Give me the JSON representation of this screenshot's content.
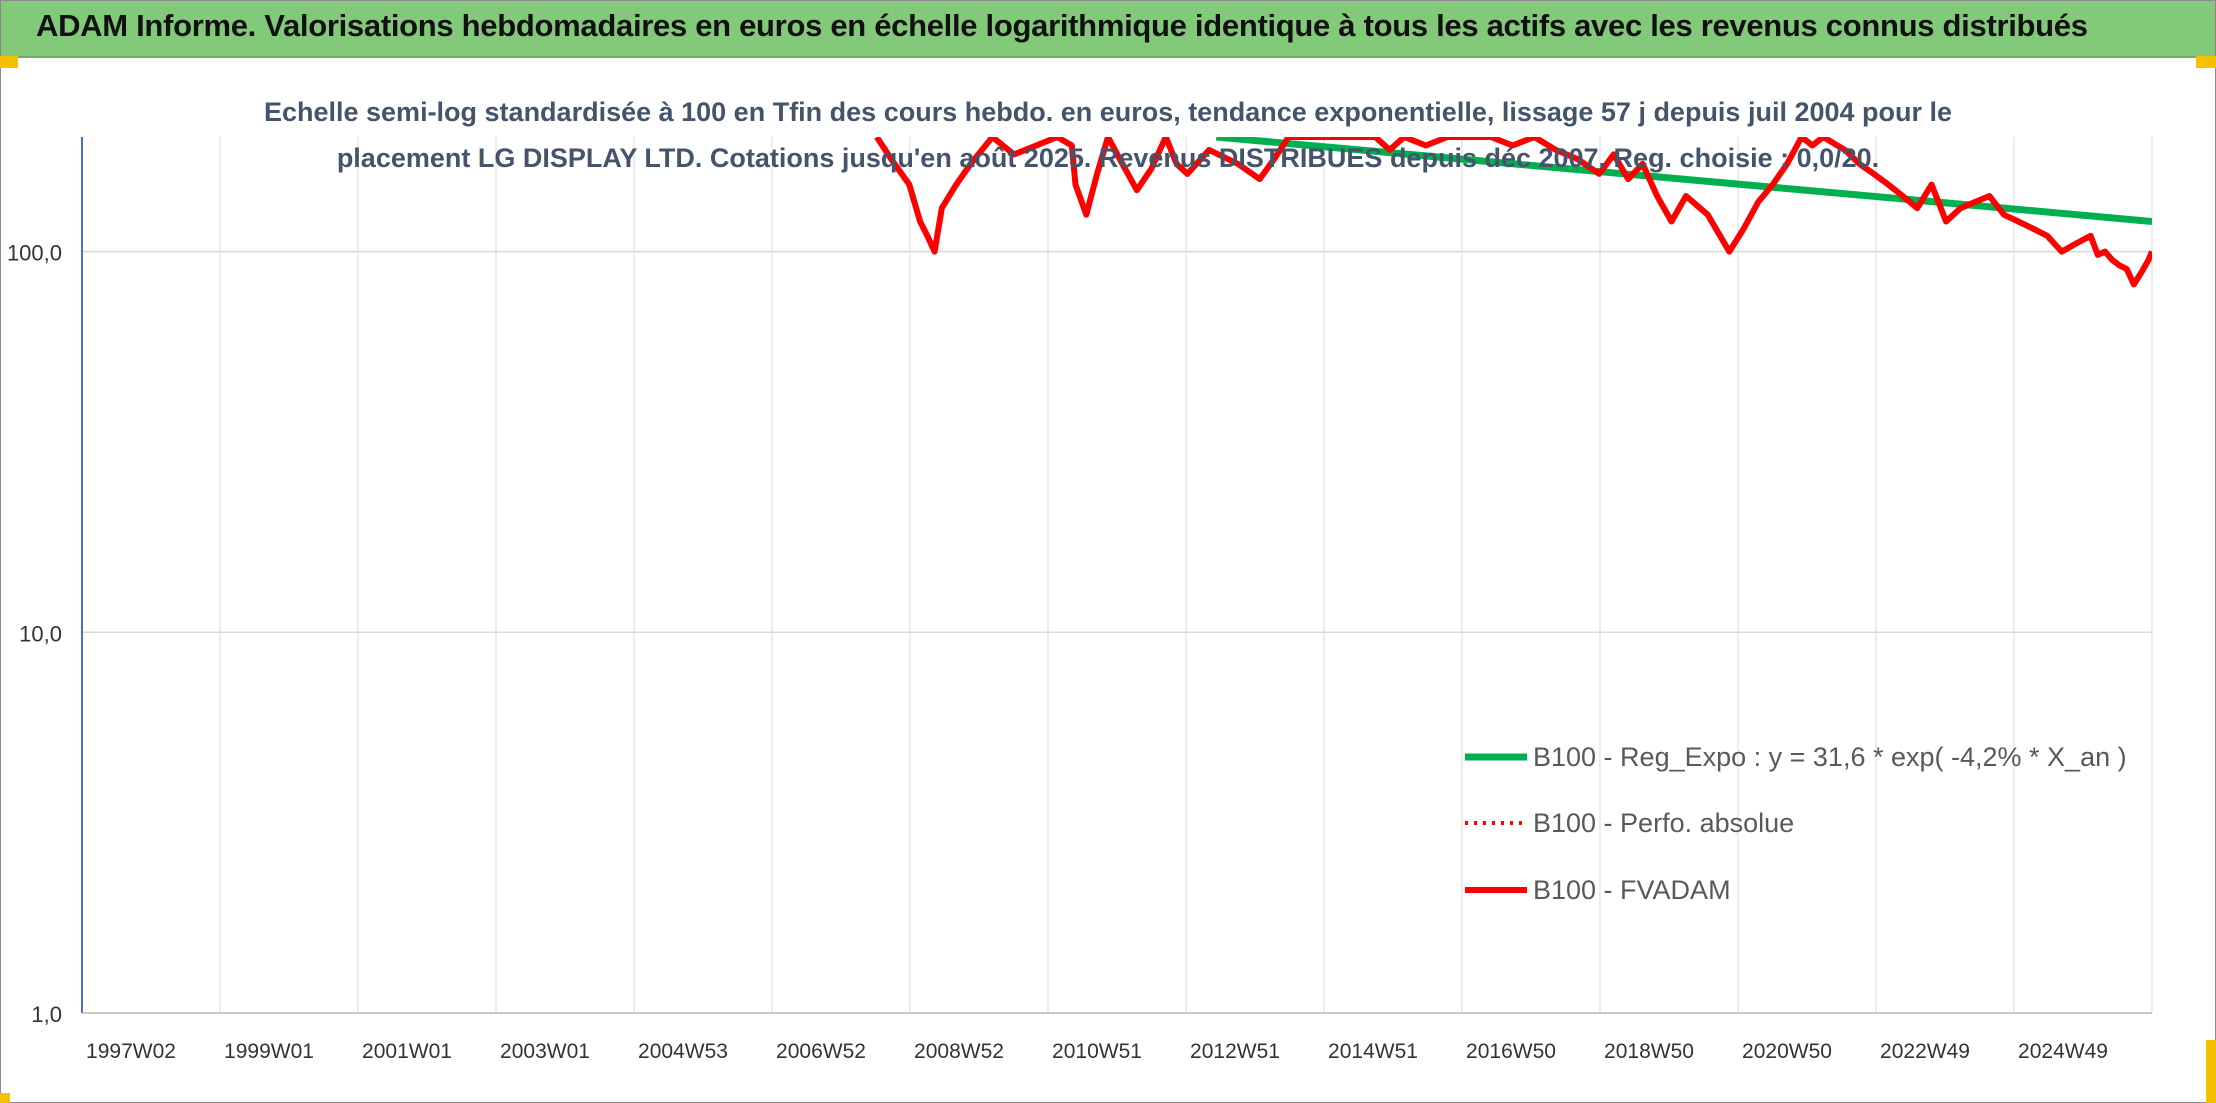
{
  "page": {
    "title": "ADAM Informe. Valorisations hebdomadaires en euros en échelle logarithmique identique à tous les actifs avec les revenus connus distribués"
  },
  "colors": {
    "header_bg": "#83c97a",
    "accent": "#f5c000",
    "reg_expo": "#00b050",
    "perfo": "#ff0000",
    "fvadam": "#ff0000",
    "subtitle": "#44546a"
  },
  "chart_data": {
    "type": "line",
    "title_line1": "Echelle semi-log standardisée à 100 en Tfin des cours hebdo. en euros, tendance exponentielle, lissage 57 j depuis juil 2004 pour le",
    "title_line2": "placement LG DISPLAY LTD. Cotations jusqu'en août 2025. Revenus DISTRIBUES depuis déc 2007. Reg. choisie : 0,0/20.",
    "y_scale": "log",
    "ylim": [
      1,
      200
    ],
    "y_ticks": [
      "1,0",
      "10,0",
      "100,0"
    ],
    "y_tick_values": [
      1,
      10,
      100
    ],
    "x_labels": [
      "1997W02",
      "1999W01",
      "2001W01",
      "2003W01",
      "2004W53",
      "2006W52",
      "2008W52",
      "2010W51",
      "2012W51",
      "2014W51",
      "2016W50",
      "2018W50",
      "2020W50",
      "2022W49",
      "2024W49"
    ],
    "xlim": [
      1997.0,
      2025.65
    ],
    "grid": true,
    "legend_position": "right",
    "series": [
      {
        "name": "B100 - Reg_Expo : y = 31,6 * exp( -4,2% *  X_an )",
        "style": "solid",
        "x": [
          2012.7,
          2025.65
        ],
        "y": [
          200,
          120
        ]
      },
      {
        "name": "B100 - Perfo. absolue",
        "style": "dotted",
        "x": [],
        "y": []
      },
      {
        "name": "B100 - FVADAM",
        "style": "solid",
        "x": [
          2008.0,
          2008.2,
          2008.45,
          2008.6,
          2008.7,
          2008.8,
          2008.9,
          2009.1,
          2009.3,
          2009.6,
          2009.9,
          2010.5,
          2010.7,
          2010.75,
          2010.9,
          2011.05,
          2011.2,
          2011.4,
          2011.6,
          2011.8,
          2012.0,
          2012.15,
          2012.3,
          2012.6,
          2013.0,
          2013.3,
          2013.5,
          2013.7,
          2013.95,
          2014.3,
          2014.6,
          2014.9,
          2015.1,
          2015.3,
          2015.6,
          2015.9,
          2016.2,
          2016.5,
          2016.8,
          2017.1,
          2017.4,
          2017.7,
          2018.0,
          2018.2,
          2018.4,
          2018.6,
          2018.8,
          2019.0,
          2019.2,
          2019.5,
          2019.8,
          2020.0,
          2020.2,
          2020.4,
          2020.6,
          2020.8,
          2020.95,
          2021.1,
          2021.4,
          2021.6,
          2021.8,
          2022.0,
          2022.2,
          2022.4,
          2022.6,
          2022.8,
          2023.0,
          2023.2,
          2023.4,
          2023.6,
          2023.8,
          2024.0,
          2024.2,
          2024.4,
          2024.6,
          2024.8,
          2024.9,
          2025.0,
          2025.1,
          2025.2,
          2025.3,
          2025.4,
          2025.5,
          2025.6,
          2025.65
        ],
        "y": [
          200,
          175,
          150,
          120,
          110,
          100,
          130,
          150,
          170,
          200,
          180,
          200,
          190,
          150,
          125,
          160,
          200,
          170,
          145,
          165,
          200,
          170,
          160,
          185,
          170,
          155,
          175,
          200,
          200,
          200,
          200,
          200,
          185,
          200,
          190,
          200,
          200,
          200,
          190,
          200,
          185,
          175,
          160,
          180,
          155,
          170,
          140,
          120,
          140,
          125,
          100,
          115,
          135,
          150,
          170,
          200,
          190,
          200,
          185,
          170,
          160,
          150,
          140,
          130,
          150,
          120,
          130,
          135,
          140,
          125,
          120,
          115,
          110,
          100,
          105,
          110,
          98,
          100,
          95,
          92,
          90,
          82,
          88,
          95,
          100
        ]
      }
    ]
  }
}
